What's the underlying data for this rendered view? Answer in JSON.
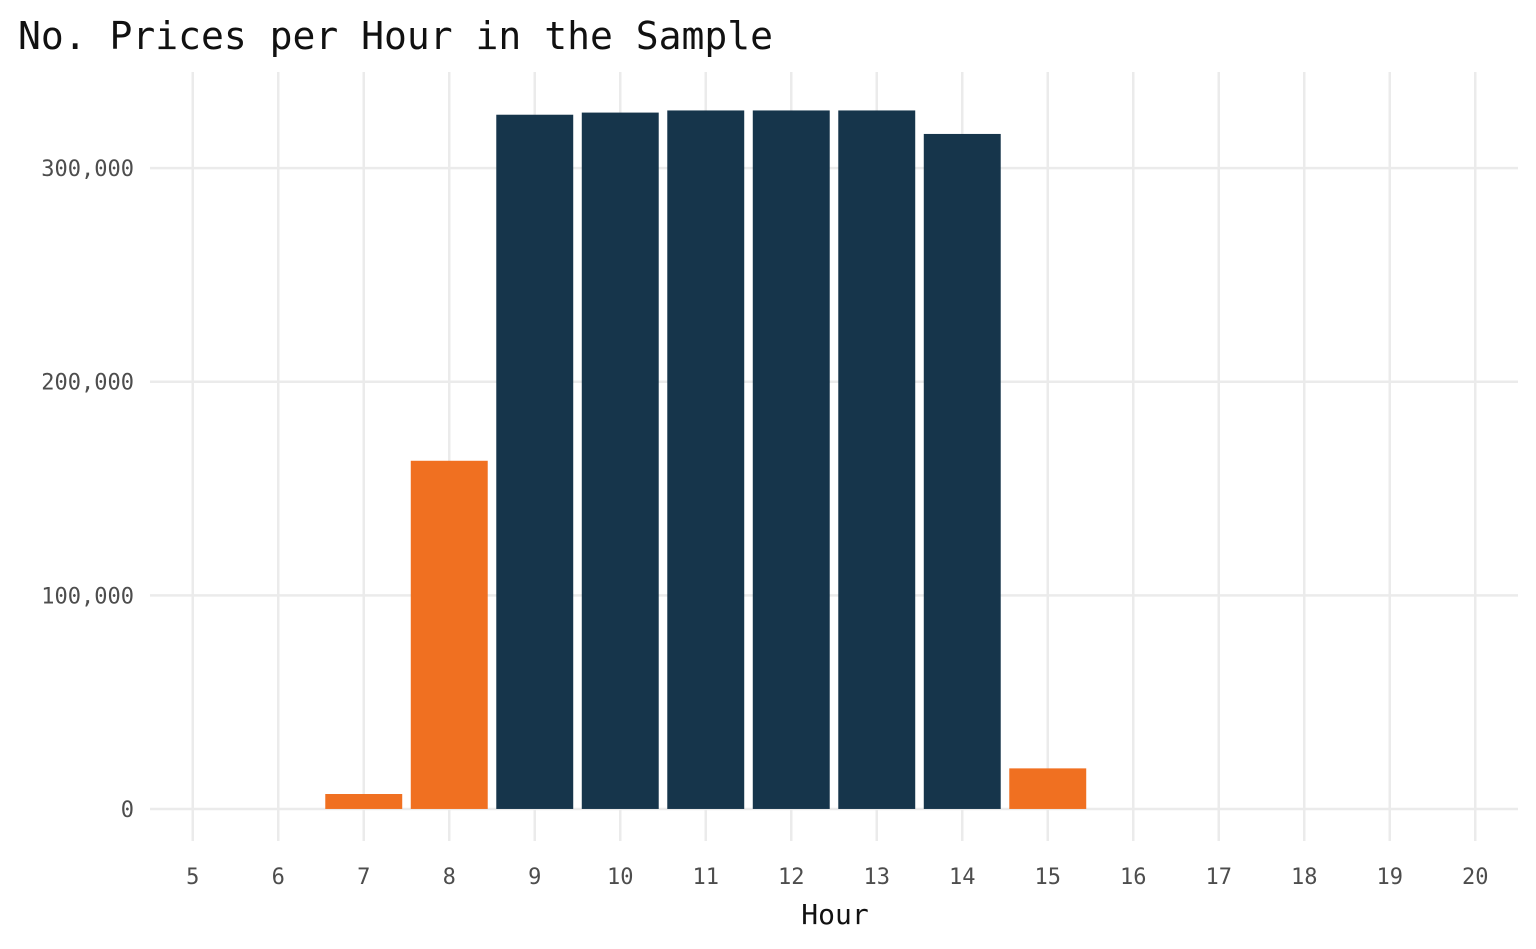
{
  "chart_data": {
    "type": "bar",
    "title": "No. Prices per Hour in the Sample",
    "xlabel": "Hour",
    "ylabel": "",
    "categories": [
      5,
      6,
      7,
      8,
      9,
      10,
      11,
      12,
      13,
      14,
      15,
      16,
      17,
      18,
      19,
      20
    ],
    "values": [
      0,
      0,
      7000,
      163000,
      325000,
      326000,
      327000,
      327000,
      327000,
      316000,
      19000,
      0,
      0,
      0,
      0,
      0
    ],
    "bar_groups": [
      "off-peak",
      "off-peak",
      "off-peak",
      "off-peak",
      "peak",
      "peak",
      "peak",
      "peak",
      "peak",
      "peak",
      "off-peak",
      "off-peak",
      "off-peak",
      "off-peak",
      "off-peak",
      "off-peak"
    ],
    "colors": {
      "peak": "#16354b",
      "off-peak": "#f07021"
    },
    "xlim": [
      4.5,
      20.5
    ],
    "ylim": [
      -15000,
      345000
    ],
    "y_ticks": [
      0,
      100000,
      200000,
      300000
    ],
    "y_tick_labels": [
      "0",
      "100,000",
      "200,000",
      "300,000"
    ],
    "x_tick_labels": [
      "5",
      "6",
      "7",
      "8",
      "9",
      "10",
      "11",
      "12",
      "13",
      "14",
      "15",
      "16",
      "17",
      "18",
      "19",
      "20"
    ],
    "grid": true,
    "legend": "none"
  }
}
